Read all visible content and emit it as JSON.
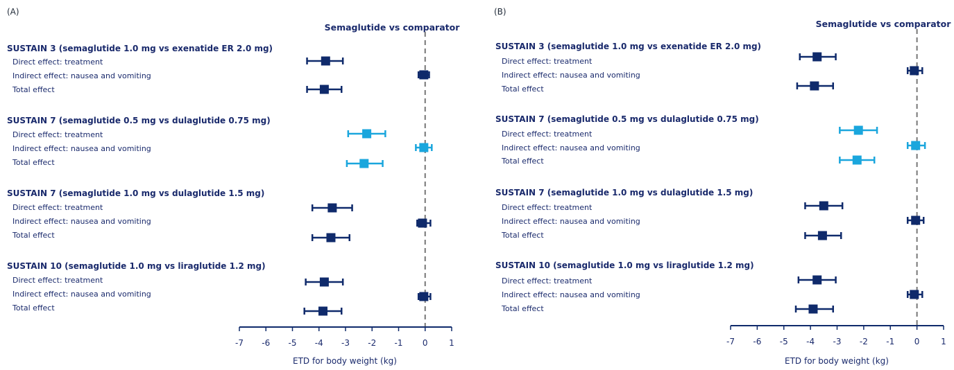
{
  "colors": {
    "navy": "#0f2a6b",
    "cyan": "#1aa6dd",
    "zero_line": "#777777"
  },
  "chart_data": [
    {
      "type": "forest",
      "panel_label": "(A)",
      "header": "Semaglutide vs comparator",
      "xlabel": "ETD for body weight (kg)",
      "xlim": [
        -7,
        1
      ],
      "ticks": [
        "-7",
        "-6",
        "-5",
        "-4",
        "-3",
        "-2",
        "-1",
        "0",
        "1"
      ],
      "reference_line": 0,
      "groups": [
        {
          "title": "SUSTAIN 3 (semaglutide 1.0 mg vs exenatide ER 2.0 mg)",
          "color": "#0f2a6b",
          "rows": [
            {
              "label": "Direct effect: treatment",
              "est": -3.75,
              "lo": -4.45,
              "hi": -3.1
            },
            {
              "label": "Indirect effect: nausea and vomiting",
              "est": -0.05,
              "lo": -0.25,
              "hi": 0.15
            },
            {
              "label": "Total effect",
              "est": -3.8,
              "lo": -4.45,
              "hi": -3.15
            }
          ]
        },
        {
          "title": "SUSTAIN 7 (semaglutide 0.5 mg vs dulaglutide 0.75 mg)",
          "color": "#1aa6dd",
          "rows": [
            {
              "label": "Direct effect: treatment",
              "est": -2.2,
              "lo": -2.9,
              "hi": -1.5
            },
            {
              "label": "Indirect effect: nausea and vomiting",
              "est": -0.05,
              "lo": -0.35,
              "hi": 0.25
            },
            {
              "label": "Total effect",
              "est": -2.3,
              "lo": -2.95,
              "hi": -1.6
            }
          ]
        },
        {
          "title": "SUSTAIN 7 (semaglutide 1.0 mg vs dulaglutide 1.5 mg)",
          "color": "#0f2a6b",
          "rows": [
            {
              "label": "Direct effect: treatment",
              "est": -3.5,
              "lo": -4.25,
              "hi": -2.75
            },
            {
              "label": "Indirect effect: nausea and vomiting",
              "est": -0.1,
              "lo": -0.3,
              "hi": 0.2
            },
            {
              "label": "Total effect",
              "est": -3.55,
              "lo": -4.25,
              "hi": -2.85
            }
          ]
        },
        {
          "title": "SUSTAIN 10 (semaglutide 1.0 mg vs liraglutide 1.2 mg)",
          "color": "#0f2a6b",
          "rows": [
            {
              "label": "Direct effect: treatment",
              "est": -3.8,
              "lo": -4.5,
              "hi": -3.1
            },
            {
              "label": "Indirect effect: nausea and vomiting",
              "est": -0.05,
              "lo": -0.25,
              "hi": 0.2
            },
            {
              "label": "Total effect",
              "est": -3.85,
              "lo": -4.55,
              "hi": -3.15
            }
          ]
        }
      ]
    },
    {
      "type": "forest",
      "panel_label": "(B)",
      "header": "Semaglutide vs comparator",
      "xlabel": "ETD for body weight (kg)",
      "xlim": [
        -7,
        1
      ],
      "ticks": [
        "-7",
        "-6",
        "-5",
        "-4",
        "-3",
        "-2",
        "-1",
        "0",
        "1"
      ],
      "reference_line": 0,
      "groups": [
        {
          "title": "SUSTAIN 3 (semaglutide 1.0 mg vs exenatide ER 2.0 mg)",
          "color": "#0f2a6b",
          "rows": [
            {
              "label": "Direct effect: treatment",
              "est": -3.75,
              "lo": -4.4,
              "hi": -3.05
            },
            {
              "label": "Indirect effect: nausea and vomiting",
              "est": -0.1,
              "lo": -0.35,
              "hi": 0.2
            },
            {
              "label": "Total effect",
              "est": -3.85,
              "lo": -4.5,
              "hi": -3.15
            }
          ]
        },
        {
          "title": "SUSTAIN 7 (semaglutide 0.5 mg vs dulaglutide 0.75 mg)",
          "color": "#1aa6dd",
          "rows": [
            {
              "label": "Direct effect: treatment",
              "est": -2.2,
              "lo": -2.9,
              "hi": -1.5
            },
            {
              "label": "Indirect effect: nausea and vomiting",
              "est": -0.05,
              "lo": -0.35,
              "hi": 0.3
            },
            {
              "label": "Total effect",
              "est": -2.25,
              "lo": -2.9,
              "hi": -1.6
            }
          ]
        },
        {
          "title": "SUSTAIN 7 (semaglutide 1.0 mg vs dulaglutide 1.5 mg)",
          "color": "#0f2a6b",
          "rows": [
            {
              "label": "Direct effect: treatment",
              "est": -3.5,
              "lo": -4.2,
              "hi": -2.8
            },
            {
              "label": "Indirect effect: nausea and vomiting",
              "est": -0.05,
              "lo": -0.35,
              "hi": 0.25
            },
            {
              "label": "Total effect",
              "est": -3.55,
              "lo": -4.2,
              "hi": -2.85
            }
          ]
        },
        {
          "title": "SUSTAIN 10 (semaglutide 1.0 mg vs liraglutide 1.2 mg)",
          "color": "#0f2a6b",
          "rows": [
            {
              "label": "Direct effect: treatment",
              "est": -3.75,
              "lo": -4.45,
              "hi": -3.05
            },
            {
              "label": "Indirect effect: nausea and vomiting",
              "est": -0.1,
              "lo": -0.35,
              "hi": 0.2
            },
            {
              "label": "Total effect",
              "est": -3.9,
              "lo": -4.55,
              "hi": -3.15
            }
          ]
        }
      ]
    }
  ]
}
